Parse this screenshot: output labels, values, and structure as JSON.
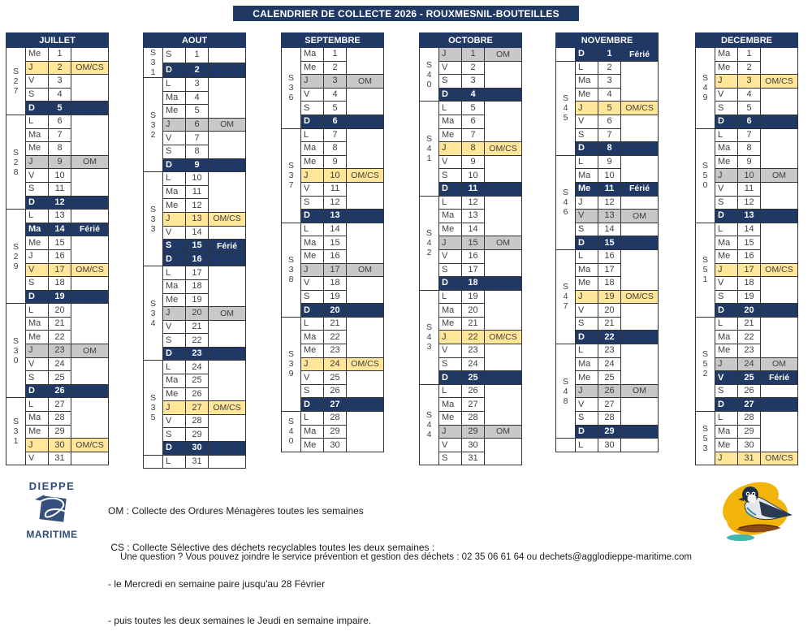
{
  "title": "CALENDRIER DE COLLECTE 2026 - ROUXMESNIL-BOUTEILLES",
  "colors": {
    "navy": "#1F3864",
    "omcs_yellow": "#FFE699",
    "om_gray": "#C8C8C8"
  },
  "legend": {
    "om": "OM : Collecte des Ordures Ménagères toutes les semaines",
    "cs": " CS : Collecte Sélective des déchets recyclables toutes les deux semaines :",
    "cs_detail_1": "- le Mercredi en semaine paire jusqu'au 28 Février",
    "cs_detail_2": "- puis toutes les deux semaines le Jeudi en semaine impaire."
  },
  "footer": "Une question ? Vous pouvez joindre le service prévention et gestion des déchets : 02 35 06 61 64 ou dechets@agglodieppe-maritime.com",
  "logo": {
    "top": "DIEPPE",
    "bottom": "MARITIME"
  },
  "months": [
    {
      "name": "JUILLET",
      "weeks": [
        {
          "label": "S27",
          "days": [
            [
              "Me",
              1,
              ""
            ],
            [
              "J",
              2,
              "OM/CS"
            ],
            [
              "V",
              3,
              ""
            ],
            [
              "S",
              4,
              ""
            ],
            [
              "D",
              5,
              ""
            ]
          ]
        },
        {
          "label": "S28",
          "days": [
            [
              "L",
              6,
              ""
            ],
            [
              "Ma",
              7,
              ""
            ],
            [
              "Me",
              8,
              ""
            ],
            [
              "J",
              9,
              "OM"
            ],
            [
              "V",
              10,
              ""
            ],
            [
              "S",
              11,
              ""
            ],
            [
              "D",
              12,
              ""
            ]
          ]
        },
        {
          "label": "S29",
          "days": [
            [
              "L",
              13,
              ""
            ],
            [
              "Ma",
              14,
              "Férié"
            ],
            [
              "Me",
              15,
              ""
            ],
            [
              "J",
              16,
              ""
            ],
            [
              "V",
              17,
              "OM/CS"
            ],
            [
              "S",
              18,
              ""
            ],
            [
              "D",
              19,
              ""
            ]
          ]
        },
        {
          "label": "S30",
          "days": [
            [
              "L",
              20,
              ""
            ],
            [
              "Ma",
              21,
              ""
            ],
            [
              "Me",
              22,
              ""
            ],
            [
              "J",
              23,
              "OM"
            ],
            [
              "V",
              24,
              ""
            ],
            [
              "S",
              25,
              ""
            ],
            [
              "D",
              26,
              ""
            ]
          ]
        },
        {
          "label": "S31",
          "days": [
            [
              "L",
              27,
              ""
            ],
            [
              "Ma",
              28,
              ""
            ],
            [
              "Me",
              29,
              ""
            ],
            [
              "J",
              30,
              "OM/CS"
            ],
            [
              "V",
              31,
              ""
            ]
          ]
        }
      ]
    },
    {
      "name": "AOUT",
      "weeks": [
        {
          "label": "S31",
          "days": [
            [
              "S",
              1,
              ""
            ],
            [
              "D",
              2,
              ""
            ]
          ]
        },
        {
          "label": "S32",
          "days": [
            [
              "L",
              3,
              ""
            ],
            [
              "Ma",
              4,
              ""
            ],
            [
              "Me",
              5,
              ""
            ],
            [
              "J",
              6,
              "OM"
            ],
            [
              "V",
              7,
              ""
            ],
            [
              "S",
              8,
              ""
            ],
            [
              "D",
              9,
              ""
            ]
          ]
        },
        {
          "label": "S33",
          "days": [
            [
              "L",
              10,
              ""
            ],
            [
              "Ma",
              11,
              ""
            ],
            [
              "Me",
              12,
              ""
            ],
            [
              "J",
              13,
              "OM/CS"
            ],
            [
              "V",
              14,
              ""
            ],
            [
              "S",
              15,
              "Férié"
            ],
            [
              "D",
              16,
              ""
            ]
          ]
        },
        {
          "label": "S34",
          "days": [
            [
              "L",
              17,
              ""
            ],
            [
              "Ma",
              18,
              ""
            ],
            [
              "Me",
              19,
              ""
            ],
            [
              "J",
              20,
              "OM"
            ],
            [
              "V",
              21,
              ""
            ],
            [
              "S",
              22,
              ""
            ],
            [
              "D",
              23,
              ""
            ]
          ]
        },
        {
          "label": "S35",
          "days": [
            [
              "L",
              24,
              ""
            ],
            [
              "Ma",
              25,
              ""
            ],
            [
              "Me",
              26,
              ""
            ],
            [
              "J",
              27,
              "OM/CS"
            ],
            [
              "V",
              28,
              ""
            ],
            [
              "S",
              29,
              ""
            ],
            [
              "D",
              30,
              ""
            ]
          ]
        },
        {
          "label": "",
          "days": [
            [
              "L",
              31,
              ""
            ]
          ]
        }
      ]
    },
    {
      "name": "SEPTEMBRE",
      "weeks": [
        {
          "label": "S36",
          "days": [
            [
              "Ma",
              1,
              ""
            ],
            [
              "Me",
              2,
              ""
            ],
            [
              "J",
              3,
              "OM"
            ],
            [
              "V",
              4,
              ""
            ],
            [
              "S",
              5,
              ""
            ],
            [
              "D",
              6,
              ""
            ]
          ]
        },
        {
          "label": "S37",
          "days": [
            [
              "L",
              7,
              ""
            ],
            [
              "Ma",
              8,
              ""
            ],
            [
              "Me",
              9,
              ""
            ],
            [
              "J",
              10,
              "OM/CS"
            ],
            [
              "V",
              11,
              ""
            ],
            [
              "S",
              12,
              ""
            ],
            [
              "D",
              13,
              ""
            ]
          ]
        },
        {
          "label": "S38",
          "days": [
            [
              "L",
              14,
              ""
            ],
            [
              "Ma",
              15,
              ""
            ],
            [
              "Me",
              16,
              ""
            ],
            [
              "J",
              17,
              "OM"
            ],
            [
              "V",
              18,
              ""
            ],
            [
              "S",
              19,
              ""
            ],
            [
              "D",
              20,
              ""
            ]
          ]
        },
        {
          "label": "S39",
          "days": [
            [
              "L",
              21,
              ""
            ],
            [
              "Ma",
              22,
              ""
            ],
            [
              "Me",
              23,
              ""
            ],
            [
              "J",
              24,
              "OM/CS"
            ],
            [
              "V",
              25,
              ""
            ],
            [
              "S",
              26,
              ""
            ],
            [
              "D",
              27,
              ""
            ]
          ]
        },
        {
          "label": "S40",
          "days": [
            [
              "L",
              28,
              ""
            ],
            [
              "Ma",
              29,
              ""
            ],
            [
              "Me",
              30,
              ""
            ]
          ]
        }
      ]
    },
    {
      "name": "OCTOBRE",
      "weeks": [
        {
          "label": "S40",
          "days": [
            [
              "J",
              1,
              "OM"
            ],
            [
              "V",
              2,
              ""
            ],
            [
              "S",
              3,
              ""
            ],
            [
              "D",
              4,
              ""
            ]
          ]
        },
        {
          "label": "S41",
          "days": [
            [
              "L",
              5,
              ""
            ],
            [
              "Ma",
              6,
              ""
            ],
            [
              "Me",
              7,
              ""
            ],
            [
              "J",
              8,
              "OM/CS"
            ],
            [
              "V",
              9,
              ""
            ],
            [
              "S",
              10,
              ""
            ],
            [
              "D",
              11,
              ""
            ]
          ]
        },
        {
          "label": "S42",
          "days": [
            [
              "L",
              12,
              ""
            ],
            [
              "Ma",
              13,
              ""
            ],
            [
              "Me",
              14,
              ""
            ],
            [
              "J",
              15,
              "OM"
            ],
            [
              "V",
              16,
              ""
            ],
            [
              "S",
              17,
              ""
            ],
            [
              "D",
              18,
              ""
            ]
          ]
        },
        {
          "label": "S43",
          "days": [
            [
              "L",
              19,
              ""
            ],
            [
              "Ma",
              20,
              ""
            ],
            [
              "Me",
              21,
              ""
            ],
            [
              "J",
              22,
              "OM/CS"
            ],
            [
              "V",
              23,
              ""
            ],
            [
              "S",
              24,
              ""
            ],
            [
              "D",
              25,
              ""
            ]
          ]
        },
        {
          "label": "S44",
          "days": [
            [
              "L",
              26,
              ""
            ],
            [
              "Ma",
              27,
              ""
            ],
            [
              "Me",
              28,
              ""
            ],
            [
              "J",
              29,
              "OM"
            ],
            [
              "V",
              30,
              ""
            ],
            [
              "S",
              31,
              ""
            ]
          ]
        }
      ]
    },
    {
      "name": "NOVEMBRE",
      "weeks": [
        {
          "label": "",
          "days": [
            [
              "D",
              1,
              "Férié"
            ]
          ]
        },
        {
          "label": "S45",
          "days": [
            [
              "L",
              2,
              ""
            ],
            [
              "Ma",
              3,
              ""
            ],
            [
              "Me",
              4,
              ""
            ],
            [
              "J",
              5,
              "OM/CS"
            ],
            [
              "V",
              6,
              ""
            ],
            [
              "S",
              7,
              ""
            ],
            [
              "D",
              8,
              ""
            ]
          ]
        },
        {
          "label": "S46",
          "days": [
            [
              "L",
              9,
              ""
            ],
            [
              "Ma",
              10,
              ""
            ],
            [
              "Me",
              11,
              "Férié"
            ],
            [
              "J",
              12,
              ""
            ],
            [
              "V",
              13,
              "OM"
            ],
            [
              "S",
              14,
              ""
            ],
            [
              "D",
              15,
              ""
            ]
          ]
        },
        {
          "label": "S47",
          "days": [
            [
              "L",
              16,
              ""
            ],
            [
              "Ma",
              17,
              ""
            ],
            [
              "Me",
              18,
              ""
            ],
            [
              "J",
              19,
              "OM/CS"
            ],
            [
              "V",
              20,
              ""
            ],
            [
              "S",
              21,
              ""
            ],
            [
              "D",
              22,
              ""
            ]
          ]
        },
        {
          "label": "S48",
          "days": [
            [
              "L",
              23,
              ""
            ],
            [
              "Ma",
              24,
              ""
            ],
            [
              "Me",
              25,
              ""
            ],
            [
              "J",
              26,
              "OM"
            ],
            [
              "V",
              27,
              ""
            ],
            [
              "S",
              28,
              ""
            ],
            [
              "D",
              29,
              ""
            ]
          ]
        },
        {
          "label": "",
          "days": [
            [
              "L",
              30,
              ""
            ]
          ]
        }
      ]
    },
    {
      "name": "DECEMBRE",
      "weeks": [
        {
          "label": "S49",
          "days": [
            [
              "Ma",
              1,
              ""
            ],
            [
              "Me",
              2,
              ""
            ],
            [
              "J",
              3,
              "OM/CS"
            ],
            [
              "V",
              4,
              ""
            ],
            [
              "S",
              5,
              ""
            ],
            [
              "D",
              6,
              ""
            ]
          ]
        },
        {
          "label": "S50",
          "days": [
            [
              "L",
              7,
              ""
            ],
            [
              "Ma",
              8,
              ""
            ],
            [
              "Me",
              9,
              ""
            ],
            [
              "J",
              10,
              "OM"
            ],
            [
              "V",
              11,
              ""
            ],
            [
              "S",
              12,
              ""
            ],
            [
              "D",
              13,
              ""
            ]
          ]
        },
        {
          "label": "S51",
          "days": [
            [
              "L",
              14,
              ""
            ],
            [
              "Ma",
              15,
              ""
            ],
            [
              "Me",
              16,
              ""
            ],
            [
              "J",
              17,
              "OM/CS"
            ],
            [
              "V",
              18,
              ""
            ],
            [
              "S",
              19,
              ""
            ],
            [
              "D",
              20,
              ""
            ]
          ]
        },
        {
          "label": "S52",
          "days": [
            [
              "L",
              21,
              ""
            ],
            [
              "Ma",
              22,
              ""
            ],
            [
              "Me",
              23,
              ""
            ],
            [
              "J",
              24,
              "OM"
            ],
            [
              "V",
              25,
              "Férié"
            ],
            [
              "S",
              26,
              ""
            ],
            [
              "D",
              27,
              ""
            ]
          ]
        },
        {
          "label": "S53",
          "days": [
            [
              "L",
              28,
              ""
            ],
            [
              "Ma",
              29,
              ""
            ],
            [
              "Me",
              30,
              ""
            ],
            [
              "J",
              31,
              "OM/CS"
            ]
          ]
        }
      ]
    }
  ]
}
